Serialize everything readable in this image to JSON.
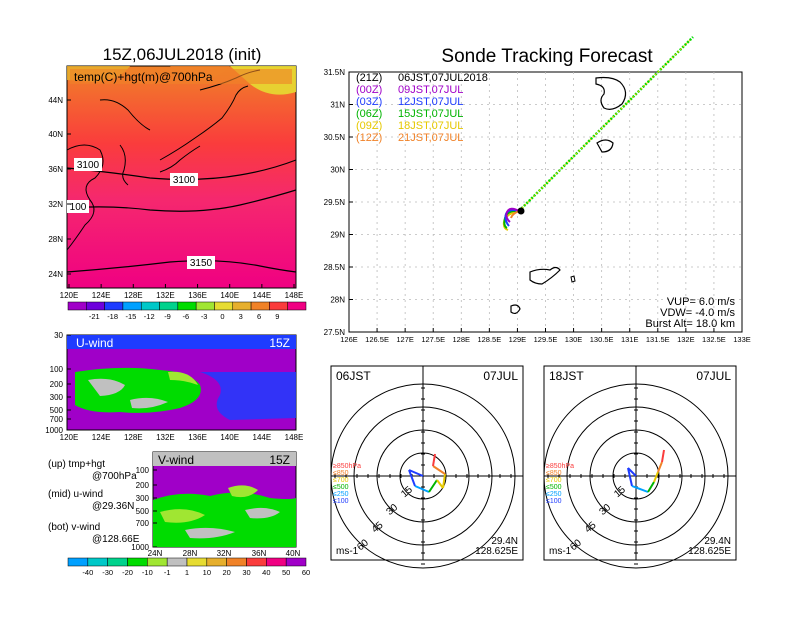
{
  "left_map": {
    "title": "15Z,06JUL2018 (init)",
    "label": "temp(C)+hgt(m)@700hPa",
    "contours": [
      "3100",
      "3100",
      "100",
      "3150"
    ],
    "lat_ticks": [
      "44N",
      "40N",
      "36N",
      "32N",
      "28N",
      "24N"
    ],
    "lon_ticks": [
      "120E",
      "124E",
      "128E",
      "132E",
      "136E",
      "140E",
      "144E",
      "148E"
    ],
    "colorbar": {
      "labels": [
        "-21",
        "-18",
        "-15",
        "-12",
        "-9",
        "-6",
        "-3",
        "0",
        "3",
        "6",
        "9"
      ],
      "colors": [
        "#a000c8",
        "#6e00dc",
        "#1e3cff",
        "#00a0ff",
        "#00c8c8",
        "#00d28c",
        "#00dc00",
        "#a0e632",
        "#e6dc32",
        "#e6af2d",
        "#f08228",
        "#fa3c3c",
        "#f00082"
      ]
    }
  },
  "u_panel": {
    "label": "U-wind",
    "time": "15Z",
    "y_ticks": [
      "30",
      "100",
      "200",
      "300",
      "500",
      "700",
      "1000"
    ],
    "x_ticks": [
      "120E",
      "124E",
      "128E",
      "132E",
      "136E",
      "140E",
      "144E",
      "148E"
    ]
  },
  "v_panel": {
    "label": "V-wind",
    "time": "15Z",
    "y_ticks": [
      "100",
      "200",
      "300",
      "500",
      "700",
      "1000"
    ],
    "x_ticks": [
      "24N",
      "28N",
      "32N",
      "36N",
      "40N"
    ]
  },
  "side_notes": [
    {
      "head": "(up)",
      "line1": "tmp+hgt",
      "line2": "@700hPa"
    },
    {
      "head": "(mid)",
      "line1": "u-wind",
      "line2": "@29.36N"
    },
    {
      "head": "(bot)",
      "line1": "v-wind",
      "line2": "@128.66E"
    }
  ],
  "bottom_colorbar": {
    "labels": [
      "-40",
      "-30",
      "-20",
      "-10",
      "-1",
      "1",
      "10",
      "20",
      "30",
      "40",
      "50",
      "60"
    ],
    "colors": [
      "#00a0ff",
      "#00c8c8",
      "#00d28c",
      "#00dc00",
      "#a0e632",
      "#c0c0c0",
      "#e6dc32",
      "#e6af2d",
      "#f08228",
      "#fa3c3c",
      "#f00082",
      "#a000c8"
    ]
  },
  "track_map": {
    "title": "Sonde Tracking Forecast",
    "legend": [
      {
        "code": "(21Z)",
        "text": "06JST,07JUL2018",
        "color": "#000000"
      },
      {
        "code": "(00Z)",
        "text": "09JST,07JUL",
        "color": "#a000c8"
      },
      {
        "code": "(03Z)",
        "text": "12JST,07JUL",
        "color": "#1e3cff"
      },
      {
        "code": "(06Z)",
        "text": "15JST,07JUL",
        "color": "#00b400"
      },
      {
        "code": "(09Z)",
        "text": "18JST,07JUL",
        "color": "#e6c800"
      },
      {
        "code": "(12Z)",
        "text": "21JST,07JUL",
        "color": "#f08228"
      }
    ],
    "lat_ticks": [
      "31.5N",
      "31N",
      "30.5N",
      "30N",
      "29.5N",
      "29N",
      "28.5N",
      "28N",
      "27.5N"
    ],
    "lon_ticks": [
      "126E",
      "126.5E",
      "127E",
      "127.5E",
      "128E",
      "128.5E",
      "129E",
      "129.5E",
      "130E",
      "130.5E",
      "131E",
      "131.5E",
      "132E",
      "132.5E",
      "133E"
    ],
    "vup": "VUP= 6.0 m/s",
    "vdw": "VDW= -4.0 m/s",
    "burst": "Burst Alt= 18.0 km"
  },
  "hodographs": [
    {
      "time": "06JST",
      "date": "07JUL",
      "rings": [
        "15",
        "30",
        "45",
        "60"
      ],
      "unit": "ms-1",
      "lat": "29.4N",
      "lon": "128.625E",
      "levels": [
        {
          "text": "≥850hPa",
          "color": "#fa3c3c"
        },
        {
          "text": "≤850",
          "color": "#f08228"
        },
        {
          "text": "≤700",
          "color": "#e6c800"
        },
        {
          "text": "≤500",
          "color": "#00b400"
        },
        {
          "text": "≤250",
          "color": "#00a0ff"
        },
        {
          "text": "≤100",
          "color": "#1e3cff"
        }
      ]
    },
    {
      "time": "18JST",
      "date": "07JUL",
      "rings": [
        "15",
        "30",
        "45",
        "60"
      ],
      "unit": "ms-1",
      "lat": "29.4N",
      "lon": "128.625E",
      "levels": [
        {
          "text": "≥850hPa",
          "color": "#fa3c3c"
        },
        {
          "text": "≤850",
          "color": "#f08228"
        },
        {
          "text": "≤700",
          "color": "#e6c800"
        },
        {
          "text": "≤500",
          "color": "#00b400"
        },
        {
          "text": "≤250",
          "color": "#00a0ff"
        },
        {
          "text": "≤100",
          "color": "#1e3cff"
        }
      ]
    }
  ]
}
